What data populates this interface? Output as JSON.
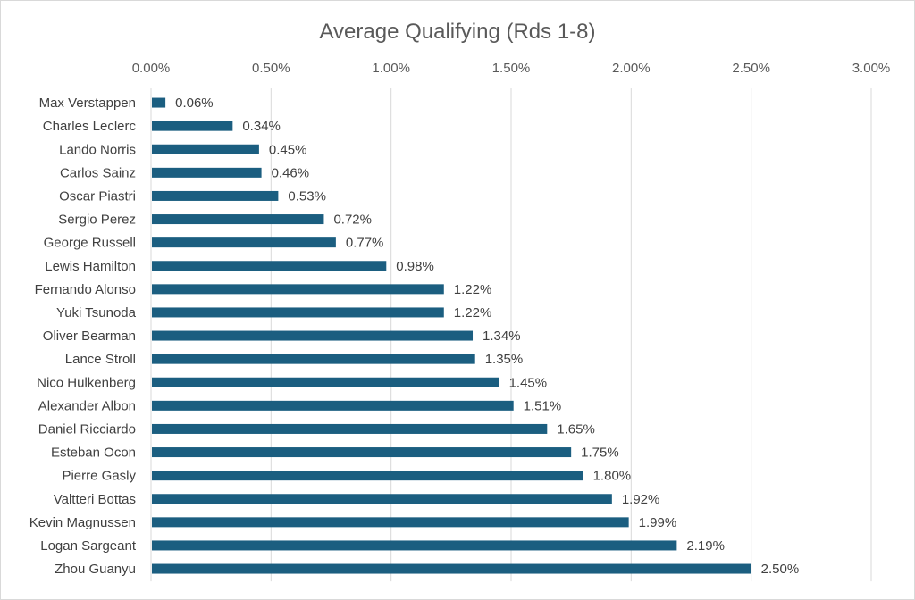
{
  "chart_data": {
    "type": "bar",
    "orientation": "horizontal",
    "title": "Average Qualifying (Rds 1-8)",
    "xlabel": "",
    "ylabel": "",
    "xlim": [
      0,
      3.0
    ],
    "x_ticks": [
      0,
      0.5,
      1.0,
      1.5,
      2.0,
      2.5,
      3.0
    ],
    "x_tick_labels": [
      "0.00%",
      "0.50%",
      "1.00%",
      "1.50%",
      "2.00%",
      "2.50%",
      "3.00%"
    ],
    "x_axis_position": "top",
    "grid": true,
    "legend": "none",
    "bar_color": "#1b5e80",
    "categories": [
      "Max Verstappen",
      "Charles Leclerc",
      "Lando Norris",
      "Carlos Sainz",
      "Oscar Piastri",
      "Sergio Perez",
      "George Russell",
      "Lewis Hamilton",
      "Fernando Alonso",
      "Yuki Tsunoda",
      "Oliver Bearman",
      "Lance Stroll",
      "Nico Hulkenberg",
      "Alexander Albon",
      "Daniel Ricciardo",
      "Esteban Ocon",
      "Pierre Gasly",
      "Valtteri Bottas",
      "Kevin Magnussen",
      "Logan Sargeant",
      "Zhou Guanyu"
    ],
    "values": [
      0.06,
      0.34,
      0.45,
      0.46,
      0.53,
      0.72,
      0.77,
      0.98,
      1.22,
      1.22,
      1.34,
      1.35,
      1.45,
      1.51,
      1.65,
      1.75,
      1.8,
      1.92,
      1.99,
      2.19,
      2.5
    ],
    "data_labels": [
      "0.06%",
      "0.34%",
      "0.45%",
      "0.46%",
      "0.53%",
      "0.72%",
      "0.77%",
      "0.98%",
      "1.22%",
      "1.22%",
      "1.34%",
      "1.35%",
      "1.45%",
      "1.51%",
      "1.65%",
      "1.75%",
      "1.80%",
      "1.92%",
      "1.99%",
      "2.19%",
      "2.50%"
    ],
    "unit": "%"
  }
}
